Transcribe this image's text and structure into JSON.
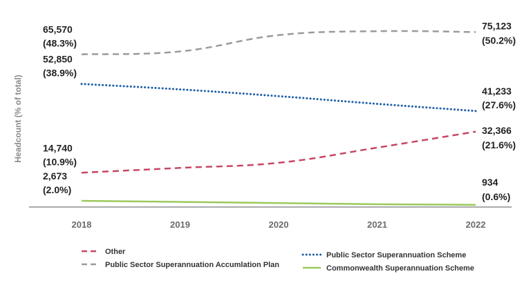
{
  "chart_data": {
    "type": "line",
    "title": "",
    "xlabel": "",
    "ylabel": "Headcount (% of total)",
    "categories": [
      "2018",
      "2019",
      "2020",
      "2021",
      "2022"
    ],
    "grid": false,
    "legend": "bottom",
    "series": [
      {
        "id": "pssap",
        "name": "Public Sector Superannuation Accumlation Plan",
        "style": "dashed",
        "color": "#9a9a9a",
        "values": [
          65570,
          66800,
          73800,
          75500,
          75123
        ],
        "start_label": {
          "value": "65,570",
          "pct": "(48.3%)"
        },
        "end_label": {
          "value": "75,123",
          "pct": "(50.2%)"
        }
      },
      {
        "id": "pss",
        "name": "Public Sector Superannuation Scheme",
        "style": "dotted",
        "color": "#1f5fa8",
        "values": [
          52850,
          50500,
          47600,
          44300,
          41233
        ],
        "start_label": {
          "value": "52,850",
          "pct": "(38.9%)"
        },
        "end_label": {
          "value": "41,233",
          "pct": "(27.6%)"
        }
      },
      {
        "id": "other",
        "name": "Other",
        "style": "dashed",
        "color": "#c74564",
        "values": [
          14740,
          16800,
          19000,
          25500,
          32366
        ],
        "start_label": {
          "value": "14,740",
          "pct": "(10.9%)"
        },
        "end_label": {
          "value": "32,366",
          "pct": "(21.6%)"
        }
      },
      {
        "id": "css",
        "name": "Commonwealth Superannuation Scheme",
        "style": "solid",
        "color": "#9bc95a",
        "values": [
          2673,
          2200,
          1700,
          1200,
          934
        ],
        "start_label": {
          "value": "2,673",
          "pct": "(2.0%)"
        },
        "end_label": {
          "value": "934",
          "pct": "(0.6%)"
        }
      }
    ],
    "ylim": [
      0,
      80000
    ]
  }
}
